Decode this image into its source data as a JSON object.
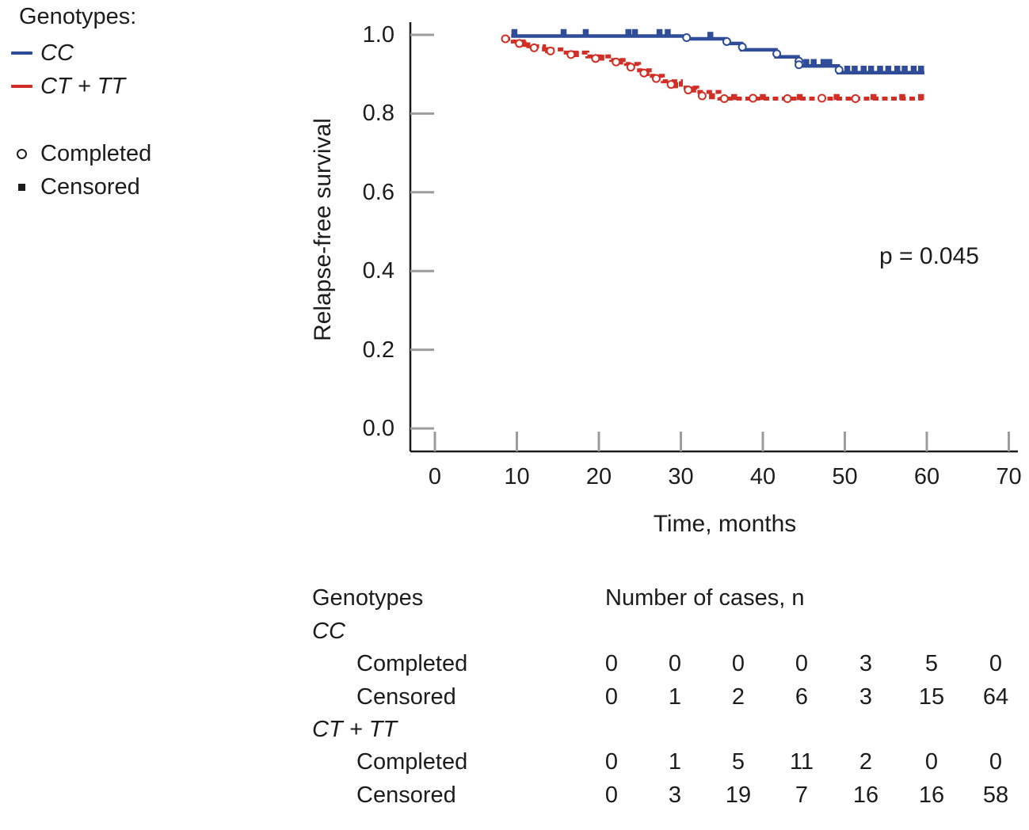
{
  "legend": {
    "title": "Genotypes:",
    "series": [
      {
        "label": "CC",
        "color": "#2e4c97"
      },
      {
        "label": "CT + TT",
        "color": "#d12f26"
      }
    ],
    "markers": [
      {
        "label": "Completed",
        "shape": "open-circle"
      },
      {
        "label": "Censored",
        "shape": "filled-square"
      }
    ]
  },
  "chart_data": {
    "type": "line",
    "subtype": "kaplan-meier-step",
    "xlabel": "Time, months",
    "ylabel": "Relapse-free survival",
    "xlim": [
      0,
      70
    ],
    "ylim": [
      0.0,
      1.0
    ],
    "x_ticks": [
      0,
      10,
      20,
      30,
      40,
      50,
      60,
      70
    ],
    "y_ticks": [
      "0.0",
      "0.2",
      "0.4",
      "0.6",
      "0.8",
      "1.0"
    ],
    "y_tick_values": [
      0.0,
      0.2,
      0.4,
      0.6,
      0.8,
      1.0
    ],
    "annotation": "p = 0.045",
    "grid": false,
    "legend_position": "outside-top-left",
    "series": [
      {
        "name": "CC",
        "color": "#2e4c97",
        "line_style": "solid",
        "steps": [
          [
            9.3,
            0.997
          ],
          [
            30.6,
            0.99
          ],
          [
            35.5,
            0.978
          ],
          [
            37.4,
            0.962
          ],
          [
            41.6,
            0.944
          ],
          [
            44.3,
            0.921
          ],
          [
            49.2,
            0.904
          ],
          [
            59.7,
            0.904
          ]
        ],
        "completed_markers": [
          [
            30.7,
            0.993
          ],
          [
            35.6,
            0.983
          ],
          [
            37.5,
            0.969
          ],
          [
            41.7,
            0.952
          ],
          [
            44.4,
            0.933
          ],
          [
            44.4,
            0.924
          ],
          [
            49.3,
            0.911
          ]
        ],
        "censored_markers": [
          [
            9.7,
            0.997
          ],
          [
            15.7,
            0.997
          ],
          [
            18.4,
            0.997
          ],
          [
            23.6,
            0.997
          ],
          [
            24.4,
            0.997
          ],
          [
            27.4,
            0.997
          ],
          [
            28.4,
            0.997
          ],
          [
            33.6,
            0.99
          ],
          [
            45.3,
            0.921
          ],
          [
            46.2,
            0.921
          ],
          [
            47.4,
            0.921
          ],
          [
            48.1,
            0.921
          ],
          [
            50.3,
            0.904
          ],
          [
            51.2,
            0.904
          ],
          [
            52.3,
            0.904
          ],
          [
            53.2,
            0.904
          ],
          [
            54.3,
            0.904
          ],
          [
            55.3,
            0.904
          ],
          [
            56.4,
            0.904
          ],
          [
            57.3,
            0.904
          ],
          [
            58.4,
            0.904
          ],
          [
            59.3,
            0.904
          ]
        ]
      },
      {
        "name": "CT + TT",
        "color": "#d12f26",
        "line_style": "dashed",
        "steps": [
          [
            8.5,
            0.99
          ],
          [
            9.5,
            0.983
          ],
          [
            11.4,
            0.971
          ],
          [
            13.3,
            0.963
          ],
          [
            15.7,
            0.955
          ],
          [
            18.6,
            0.945
          ],
          [
            21.5,
            0.936
          ],
          [
            23.3,
            0.926
          ],
          [
            24.9,
            0.91
          ],
          [
            26.2,
            0.896
          ],
          [
            27.8,
            0.882
          ],
          [
            30.0,
            0.866
          ],
          [
            32.0,
            0.855
          ],
          [
            34.7,
            0.838
          ],
          [
            59.5,
            0.838
          ]
        ],
        "completed_markers": [
          [
            8.6,
            0.99
          ],
          [
            10.3,
            0.978
          ],
          [
            12.1,
            0.967
          ],
          [
            14.1,
            0.959
          ],
          [
            16.6,
            0.95
          ],
          [
            19.6,
            0.94
          ],
          [
            22.1,
            0.931
          ],
          [
            23.9,
            0.918
          ],
          [
            25.5,
            0.903
          ],
          [
            27.0,
            0.889
          ],
          [
            28.8,
            0.874
          ],
          [
            30.9,
            0.86
          ],
          [
            32.6,
            0.845
          ],
          [
            35.3,
            0.838
          ],
          [
            38.8,
            0.839
          ],
          [
            43.0,
            0.838
          ],
          [
            47.2,
            0.839
          ],
          [
            51.3,
            0.838
          ]
        ],
        "censored_markers": [
          [
            10.8,
            0.973
          ],
          [
            13.8,
            0.957
          ],
          [
            17.2,
            0.947
          ],
          [
            20.3,
            0.938
          ],
          [
            22.6,
            0.928
          ],
          [
            25.8,
            0.899
          ],
          [
            29.3,
            0.868
          ],
          [
            31.5,
            0.857
          ],
          [
            33.8,
            0.84
          ],
          [
            36.5,
            0.838
          ],
          [
            40.0,
            0.838
          ],
          [
            44.5,
            0.838
          ],
          [
            49.0,
            0.838
          ],
          [
            53.5,
            0.838
          ],
          [
            57.0,
            0.838
          ],
          [
            59.3,
            0.838
          ]
        ]
      }
    ]
  },
  "table": {
    "col_header_left": "Genotypes",
    "col_header_right": "Number of cases, n",
    "groups": [
      {
        "genotype": "CC",
        "rows": [
          {
            "label": "Completed",
            "values": [
              "0",
              "0",
              "0",
              "0",
              "3",
              "5",
              "0"
            ]
          },
          {
            "label": "Censored",
            "values": [
              "0",
              "1",
              "2",
              "6",
              "3",
              "15",
              "64"
            ]
          }
        ]
      },
      {
        "genotype": "CT + TT",
        "rows": [
          {
            "label": "Completed",
            "values": [
              "0",
              "1",
              "5",
              "11",
              "2",
              "0",
              "0"
            ]
          },
          {
            "label": "Censored",
            "values": [
              "0",
              "3",
              "19",
              "7",
              "16",
              "16",
              "58"
            ]
          }
        ]
      }
    ]
  },
  "colors": {
    "cc": "#2e4c97",
    "ct_tt": "#d12f26",
    "axis": "#1a1a1a",
    "tick": "#9c9c9c",
    "text": "#1c1c1c"
  }
}
